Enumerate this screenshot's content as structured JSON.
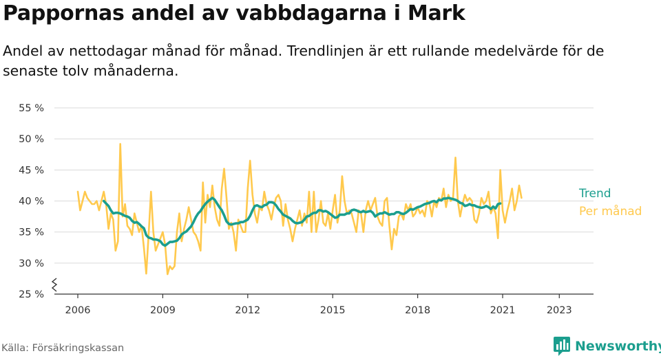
{
  "title": "Pappornas andel av vabbdagarna i Mark",
  "subtitle": "Andel av nettodagar månad för månad. Trendlinjen är ett rullande medelvärde för de senaste tolv månaderna.",
  "source": "Källa: Försäkringskassan",
  "brand": "Newsworthy",
  "colors": {
    "trend": "#1b9e8e",
    "monthly": "#ffc94d",
    "grid": "#d9d9d9",
    "brand": "#1b9e8e"
  },
  "chart_data": {
    "type": "line",
    "x_start": "2006-01",
    "x_end": "2023-05",
    "x_ticks": [
      {
        "date": "2006-01",
        "label": "2006"
      },
      {
        "date": "2009-01",
        "label": "2009"
      },
      {
        "date": "2012-01",
        "label": "2012"
      },
      {
        "date": "2015-01",
        "label": "2015"
      },
      {
        "date": "2018-01",
        "label": "2018"
      },
      {
        "date": "2021-01",
        "label": "2021"
      },
      {
        "date": "2023-01",
        "label": "2023"
      }
    ],
    "y_ticks": [
      {
        "value": 25,
        "label": "25 %"
      },
      {
        "value": 30,
        "label": "30 %"
      },
      {
        "value": 35,
        "label": "35 %"
      },
      {
        "value": 40,
        "label": "40 %"
      },
      {
        "value": 45,
        "label": "45 %"
      },
      {
        "value": 50,
        "label": "50 %"
      },
      {
        "value": 55,
        "label": "55 %"
      }
    ],
    "ylim": [
      25,
      55
    ],
    "y_axis_break": true,
    "grid": true,
    "series": [
      {
        "name": "Per månad",
        "start": "2006-01",
        "values": [
          41.5,
          38.5,
          40.0,
          41.5,
          40.5,
          40.0,
          39.5,
          39.5,
          40.0,
          38.5,
          40.0,
          41.5,
          39.5,
          35.5,
          38.0,
          37.0,
          32.0,
          33.5,
          49.2,
          37.5,
          39.5,
          36.0,
          35.5,
          34.5,
          38.0,
          36.5,
          35.0,
          36.0,
          32.5,
          28.3,
          34.5,
          41.5,
          35.0,
          32.0,
          33.0,
          34.0,
          35.0,
          33.0,
          28.2,
          29.5,
          29.0,
          29.5,
          35.0,
          38.0,
          33.5,
          35.5,
          37.0,
          39.0,
          37.0,
          35.0,
          34.5,
          33.5,
          32.0,
          43.0,
          36.5,
          41.0,
          39.0,
          42.5,
          39.0,
          37.0,
          36.0,
          42.0,
          45.2,
          40.5,
          35.5,
          36.5,
          35.0,
          32.0,
          37.0,
          36.0,
          35.0,
          35.0,
          42.0,
          46.5,
          41.0,
          38.0,
          36.5,
          39.0,
          38.5,
          41.5,
          39.5,
          38.5,
          37.0,
          39.0,
          40.5,
          41.0,
          40.0,
          36.0,
          39.5,
          37.0,
          35.5,
          33.5,
          35.5,
          37.0,
          38.5,
          36.0,
          38.0,
          36.5,
          41.5,
          35.0,
          41.5,
          35.0,
          37.0,
          40.0,
          36.5,
          36.0,
          38.0,
          35.5,
          38.5,
          41.0,
          36.5,
          38.5,
          44.0,
          40.0,
          38.0,
          38.5,
          38.0,
          36.5,
          35.0,
          38.5,
          38.0,
          35.0,
          38.5,
          40.0,
          38.5,
          39.5,
          40.5,
          37.5,
          36.5,
          36.0,
          40.0,
          40.5,
          36.0,
          32.2,
          35.5,
          34.5,
          37.5,
          38.0,
          37.0,
          39.5,
          38.5,
          39.5,
          37.5,
          38.0,
          39.0,
          38.0,
          38.5,
          37.5,
          40.0,
          39.5,
          37.5,
          40.0,
          39.0,
          40.5,
          40.0,
          42.0,
          39.0,
          41.0,
          40.0,
          40.5,
          47.0,
          40.0,
          37.5,
          39.5,
          41.0,
          40.0,
          40.5,
          40.0,
          37.0,
          36.5,
          38.0,
          40.5,
          39.5,
          40.0,
          41.5,
          38.0,
          39.0,
          38.0,
          34.0,
          45.0,
          38.5,
          36.5,
          38.5,
          40.0,
          42.0,
          38.5,
          40.0,
          42.5,
          40.5
        ]
      },
      {
        "name": "Trend",
        "start": "2006-12",
        "values": [
          40.0,
          39.6,
          39.2,
          38.5,
          38.0,
          38.1,
          38.1,
          38.0,
          37.8,
          37.6,
          37.5,
          37.3,
          36.8,
          36.5,
          36.6,
          36.3,
          35.9,
          35.6,
          34.5,
          34.1,
          34.0,
          33.8,
          33.8,
          33.7,
          33.5,
          33.0,
          32.8,
          33.1,
          33.4,
          33.4,
          33.5,
          33.6,
          34.0,
          34.6,
          34.9,
          35.1,
          35.5,
          35.9,
          36.6,
          37.4,
          38.0,
          38.4,
          39.0,
          39.5,
          39.9,
          40.2,
          40.5,
          40.2,
          39.6,
          39.0,
          38.5,
          37.7,
          36.7,
          36.3,
          36.2,
          36.3,
          36.4,
          36.4,
          36.6,
          36.6,
          36.8,
          37.0,
          37.6,
          38.5,
          39.2,
          39.3,
          39.1,
          39.0,
          39.3,
          39.4,
          39.8,
          39.8,
          39.7,
          39.3,
          38.7,
          38.3,
          37.8,
          37.6,
          37.4,
          37.2,
          36.8,
          36.5,
          36.4,
          36.5,
          36.6,
          37.0,
          37.5,
          37.6,
          37.9,
          38.1,
          38.1,
          38.5,
          38.5,
          38.3,
          38.4,
          38.2,
          37.9,
          37.6,
          37.3,
          37.4,
          37.8,
          37.8,
          37.8,
          38.0,
          38.0,
          38.5,
          38.6,
          38.5,
          38.3,
          38.2,
          38.4,
          38.2,
          38.3,
          38.4,
          38.1,
          37.5,
          37.8,
          38.0,
          38.0,
          38.2,
          38.0,
          37.8,
          37.9,
          37.9,
          38.2,
          38.2,
          38.0,
          37.9,
          38.1,
          38.4,
          38.7,
          38.6,
          38.8,
          39.0,
          39.1,
          39.3,
          39.5,
          39.6,
          39.7,
          39.9,
          40.0,
          39.8,
          40.2,
          40.1,
          40.4,
          40.4,
          40.5,
          40.4,
          40.3,
          40.2,
          40.0,
          39.7,
          39.6,
          39.2,
          39.3,
          39.5,
          39.3,
          39.3,
          39.1,
          39.0,
          38.9,
          39.0,
          39.2,
          39.0,
          38.7,
          39.1,
          38.8,
          39.5,
          39.6
        ]
      }
    ]
  }
}
